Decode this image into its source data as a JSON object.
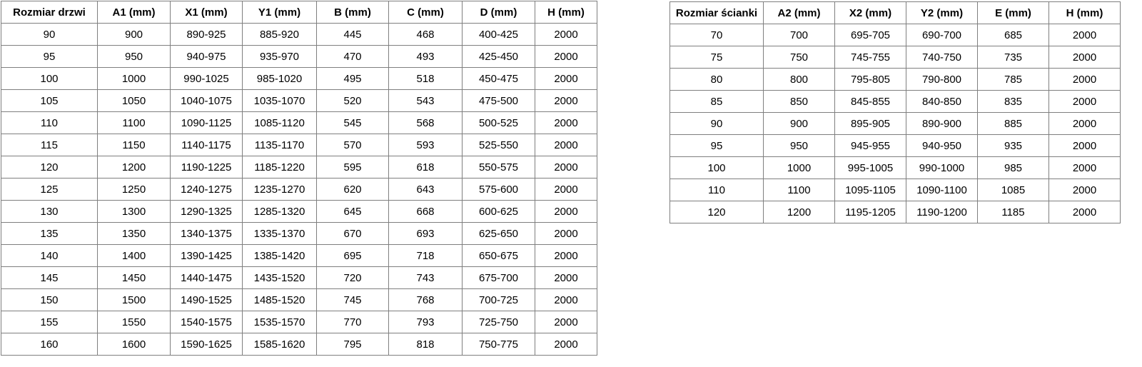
{
  "left_table": {
    "headers": [
      "Rozmiar drzwi",
      "A1 (mm)",
      "X1 (mm)",
      "Y1 (mm)",
      "B (mm)",
      "C (mm)",
      "D (mm)",
      "H (mm)"
    ],
    "rows": [
      [
        "90",
        "900",
        "890-925",
        "885-920",
        "445",
        "468",
        "400-425",
        "2000"
      ],
      [
        "95",
        "950",
        "940-975",
        "935-970",
        "470",
        "493",
        "425-450",
        "2000"
      ],
      [
        "100",
        "1000",
        "990-1025",
        "985-1020",
        "495",
        "518",
        "450-475",
        "2000"
      ],
      [
        "105",
        "1050",
        "1040-1075",
        "1035-1070",
        "520",
        "543",
        "475-500",
        "2000"
      ],
      [
        "110",
        "1100",
        "1090-1125",
        "1085-1120",
        "545",
        "568",
        "500-525",
        "2000"
      ],
      [
        "115",
        "1150",
        "1140-1175",
        "1135-1170",
        "570",
        "593",
        "525-550",
        "2000"
      ],
      [
        "120",
        "1200",
        "1190-1225",
        "1185-1220",
        "595",
        "618",
        "550-575",
        "2000"
      ],
      [
        "125",
        "1250",
        "1240-1275",
        "1235-1270",
        "620",
        "643",
        "575-600",
        "2000"
      ],
      [
        "130",
        "1300",
        "1290-1325",
        "1285-1320",
        "645",
        "668",
        "600-625",
        "2000"
      ],
      [
        "135",
        "1350",
        "1340-1375",
        "1335-1370",
        "670",
        "693",
        "625-650",
        "2000"
      ],
      [
        "140",
        "1400",
        "1390-1425",
        "1385-1420",
        "695",
        "718",
        "650-675",
        "2000"
      ],
      [
        "145",
        "1450",
        "1440-1475",
        "1435-1520",
        "720",
        "743",
        "675-700",
        "2000"
      ],
      [
        "150",
        "1500",
        "1490-1525",
        "1485-1520",
        "745",
        "768",
        "700-725",
        "2000"
      ],
      [
        "155",
        "1550",
        "1540-1575",
        "1535-1570",
        "770",
        "793",
        "725-750",
        "2000"
      ],
      [
        "160",
        "1600",
        "1590-1625",
        "1585-1620",
        "795",
        "818",
        "750-775",
        "2000"
      ]
    ]
  },
  "right_table": {
    "headers": [
      "Rozmiar ścianki",
      "A2 (mm)",
      "X2 (mm)",
      "Y2 (mm)",
      "E (mm)",
      "H (mm)"
    ],
    "rows": [
      [
        "70",
        "700",
        "695-705",
        "690-700",
        "685",
        "2000"
      ],
      [
        "75",
        "750",
        "745-755",
        "740-750",
        "735",
        "2000"
      ],
      [
        "80",
        "800",
        "795-805",
        "790-800",
        "785",
        "2000"
      ],
      [
        "85",
        "850",
        "845-855",
        "840-850",
        "835",
        "2000"
      ],
      [
        "90",
        "900",
        "895-905",
        "890-900",
        "885",
        "2000"
      ],
      [
        "95",
        "950",
        "945-955",
        "940-950",
        "935",
        "2000"
      ],
      [
        "100",
        "1000",
        "995-1005",
        "990-1000",
        "985",
        "2000"
      ],
      [
        "110",
        "1100",
        "1095-1105",
        "1090-1100",
        "1085",
        "2000"
      ],
      [
        "120",
        "1200",
        "1195-1205",
        "1190-1200",
        "1185",
        "2000"
      ]
    ]
  },
  "styles": {
    "border_color": "#7f7f7f",
    "text_color": "#000000",
    "background_color": "#ffffff"
  }
}
